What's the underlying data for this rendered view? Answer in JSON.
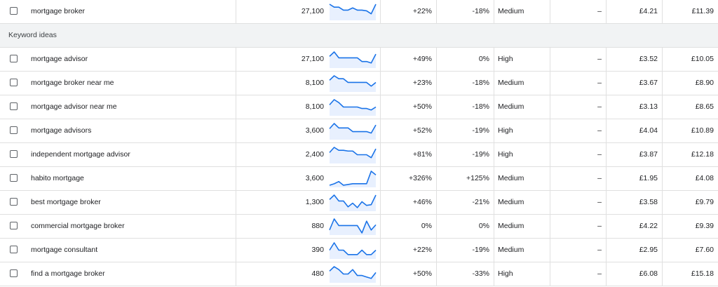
{
  "section_label": "Keyword ideas",
  "trend_color": "#1a73e8",
  "trend_fill": "#e8f0fe",
  "rows": [
    {
      "keyword": "mortgage broker",
      "volume": "27,100",
      "trend": [
        1,
        0.8,
        0.8,
        0.6,
        0.6,
        0.75,
        0.6,
        0.6,
        0.55,
        0.35,
        1
      ],
      "change3m": "+22%",
      "yoy": "-18%",
      "competition": "Medium",
      "impression_share": "–",
      "bid_low": "£4.21",
      "bid_high": "£11.39"
    },
    {
      "keyword": "mortgage advisor",
      "volume": "27,100",
      "trend": [
        0.7,
        1,
        0.6,
        0.6,
        0.6,
        0.6,
        0.6,
        0.35,
        0.35,
        0.25,
        0.85
      ],
      "change3m": "+49%",
      "yoy": "0%",
      "competition": "High",
      "impression_share": "–",
      "bid_low": "£3.52",
      "bid_high": "£10.05"
    },
    {
      "keyword": "mortgage broker near me",
      "volume": "8,100",
      "trend": [
        0.7,
        1,
        0.8,
        0.8,
        0.55,
        0.55,
        0.55,
        0.55,
        0.55,
        0.3,
        0.55
      ],
      "change3m": "+23%",
      "yoy": "-18%",
      "competition": "Medium",
      "impression_share": "–",
      "bid_low": "£3.67",
      "bid_high": "£8.90"
    },
    {
      "keyword": "mortgage advisor near me",
      "volume": "8,100",
      "trend": [
        0.65,
        1,
        0.8,
        0.5,
        0.5,
        0.5,
        0.5,
        0.4,
        0.4,
        0.3,
        0.5
      ],
      "change3m": "+50%",
      "yoy": "-18%",
      "competition": "Medium",
      "impression_share": "–",
      "bid_low": "£3.13",
      "bid_high": "£8.65"
    },
    {
      "keyword": "mortgage advisors",
      "volume": "3,600",
      "trend": [
        0.65,
        1,
        0.7,
        0.7,
        0.7,
        0.45,
        0.45,
        0.45,
        0.45,
        0.35,
        0.9
      ],
      "change3m": "+52%",
      "yoy": "-19%",
      "competition": "High",
      "impression_share": "–",
      "bid_low": "£4.04",
      "bid_high": "£10.89"
    },
    {
      "keyword": "independent mortgage advisor",
      "volume": "2,400",
      "trend": [
        0.65,
        1,
        0.8,
        0.8,
        0.75,
        0.75,
        0.5,
        0.5,
        0.5,
        0.3,
        0.9
      ],
      "change3m": "+81%",
      "yoy": "-19%",
      "competition": "High",
      "impression_share": "–",
      "bid_low": "£3.87",
      "bid_high": "£12.18"
    },
    {
      "keyword": "habito mortgage",
      "volume": "3,600",
      "trend": [
        0.05,
        0.15,
        0.3,
        0.05,
        0.1,
        0.15,
        0.15,
        0.15,
        0.15,
        1,
        0.75
      ],
      "change3m": "+326%",
      "yoy": "+125%",
      "competition": "Medium",
      "impression_share": "–",
      "bid_low": "£1.95",
      "bid_high": "£4.08"
    },
    {
      "keyword": "best mortgage broker",
      "volume": "1,300",
      "trend": [
        0.7,
        1,
        0.6,
        0.6,
        0.2,
        0.45,
        0.15,
        0.55,
        0.3,
        0.35,
        1
      ],
      "change3m": "+46%",
      "yoy": "-21%",
      "competition": "Medium",
      "impression_share": "–",
      "bid_low": "£3.58",
      "bid_high": "£9.79"
    },
    {
      "keyword": "commercial mortgage broker",
      "volume": "880",
      "trend": [
        0.25,
        1,
        0.55,
        0.55,
        0.55,
        0.55,
        0.55,
        0.05,
        0.85,
        0.25,
        0.6
      ],
      "change3m": "0%",
      "yoy": "0%",
      "competition": "Medium",
      "impression_share": "–",
      "bid_low": "£4.22",
      "bid_high": "£9.39"
    },
    {
      "keyword": "mortgage consultant",
      "volume": "390",
      "trend": [
        0.5,
        1,
        0.5,
        0.5,
        0.2,
        0.2,
        0.2,
        0.5,
        0.2,
        0.2,
        0.5
      ],
      "change3m": "+22%",
      "yoy": "-19%",
      "competition": "Medium",
      "impression_share": "–",
      "bid_low": "£2.95",
      "bid_high": "£7.60"
    },
    {
      "keyword": "find a mortgage broker",
      "volume": "480",
      "trend": [
        0.7,
        1,
        0.8,
        0.5,
        0.5,
        0.8,
        0.4,
        0.4,
        0.3,
        0.2,
        0.6
      ],
      "change3m": "+50%",
      "yoy": "-33%",
      "competition": "High",
      "impression_share": "–",
      "bid_low": "£6.08",
      "bid_high": "£15.18"
    }
  ]
}
